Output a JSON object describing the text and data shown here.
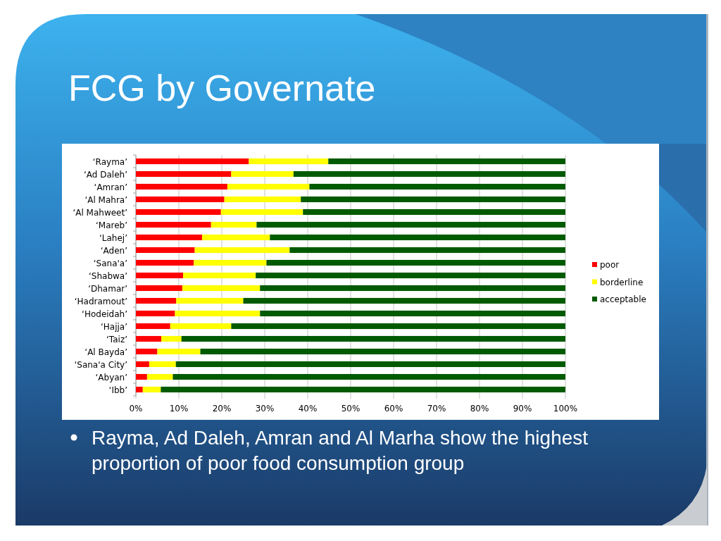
{
  "chart_data": {
    "type": "bar",
    "orientation": "horizontal",
    "stacked": true,
    "title": "FCG by Governate",
    "categories": [
      "‘Rayma’",
      "‘Ad Daleh’",
      "‘Amran’",
      "‘Al Mahra’",
      "‘Al Mahweet’",
      "‘Mareb’",
      "‘Lahej’",
      "‘Aden’",
      "‘Sana'a’",
      "‘Shabwa’",
      "‘Dhamar’",
      "‘Hadramout’",
      "‘Hodeidah’",
      "‘Hajja’",
      "‘Taiz’",
      "‘Al Bayda’",
      "‘Sana'a City’",
      "‘Abyan’",
      "‘Ibb’"
    ],
    "series": [
      {
        "name": "poor",
        "color": "#ff0000",
        "values": [
          26.3,
          22.2,
          21.3,
          20.6,
          19.8,
          17.5,
          15.4,
          13.7,
          13.5,
          11.0,
          10.8,
          9.4,
          9.1,
          8.0,
          5.9,
          5.0,
          3.1,
          2.6,
          1.6
        ]
      },
      {
        "name": "borderline",
        "color": "#ffff00",
        "values": [
          18.5,
          14.5,
          19.1,
          17.8,
          19.1,
          10.6,
          15.8,
          22.1,
          16.9,
          16.9,
          18.1,
          15.6,
          19.8,
          14.2,
          4.7,
          10.0,
          6.2,
          6.0,
          4.2
        ]
      },
      {
        "name": "acceptable",
        "color": "#005a00",
        "values": [
          55.2,
          63.3,
          59.6,
          61.6,
          61.1,
          71.9,
          68.8,
          64.2,
          69.6,
          72.1,
          71.1,
          75.0,
          71.1,
          77.8,
          89.4,
          85.0,
          90.7,
          91.4,
          94.2
        ]
      }
    ],
    "xlim": [
      0,
      100
    ],
    "xticks": [
      {
        "value": 0,
        "label": "0%"
      },
      {
        "value": 10,
        "label": "10%"
      },
      {
        "value": 20,
        "label": "20%"
      },
      {
        "value": 30,
        "label": "30%"
      },
      {
        "value": 40,
        "label": "40%"
      },
      {
        "value": 50,
        "label": "50%"
      },
      {
        "value": 60,
        "label": "60%"
      },
      {
        "value": 70,
        "label": "70%"
      },
      {
        "value": 80,
        "label": "80%"
      },
      {
        "value": 90,
        "label": "90%"
      },
      {
        "value": 100,
        "label": "100%"
      }
    ],
    "grid": "x",
    "legend": "right",
    "annotations": [
      "Rayma, Ad Daleh, Amran and Al Marha show the highest proportion of poor food consumption group"
    ]
  }
}
